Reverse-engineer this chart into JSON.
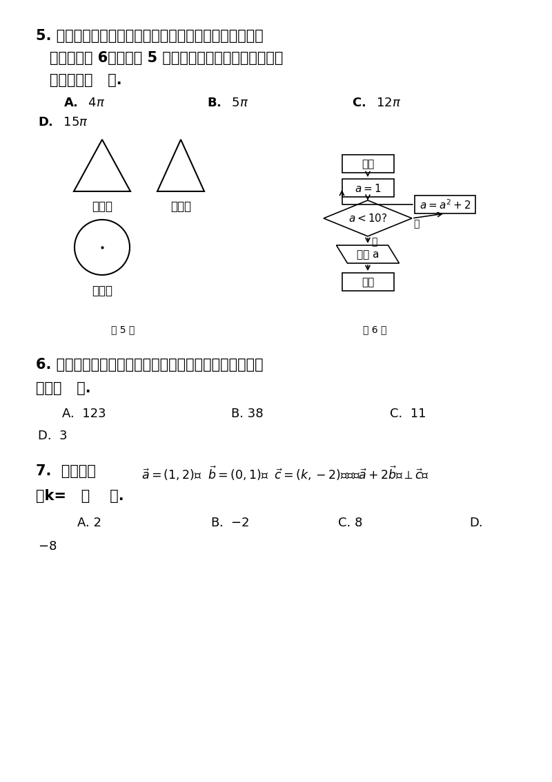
{
  "bg_color": "#ffffff",
  "q5_line1": "5. 一个几何体的三视图如图所示，其中正视图与侧视图都",
  "q5_line2": "是底边长为 6、腼长为 5 的等腼三角形，则这个几何体的",
  "q5_line3": "侧面积为（   ）.",
  "label_front": "正视图",
  "label_side": "侧视图",
  "label_top": "俧视图",
  "label_q5": "第 5 题",
  "label_q6": "第 6 题",
  "flow_kaishi": "开始",
  "flow_end_text": "结束",
  "flow_output": "输出 a",
  "flow_yes": "是",
  "flow_no": "否",
  "q6_line1": "6. 阅读上图所示的程序框图，运行相应的程序，输出的结",
  "q6_line2": "果是（   ）.",
  "q7_intro": "7.  已知向量",
  "q7_line2": "则k=   （    ）."
}
